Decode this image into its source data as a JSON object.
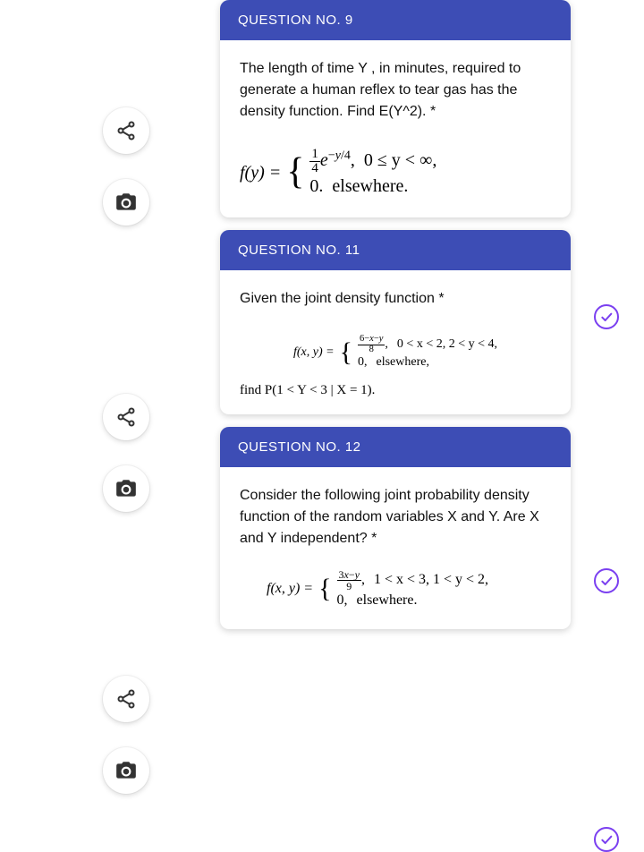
{
  "side_icons": {
    "share": "share-icon",
    "camera": "camera-icon"
  },
  "questions": [
    {
      "header": "QUESTION NO. 9",
      "body": "The length of time Y , in minutes, required to generate a human reflex to tear gas has the density function. Find E(Y^2). *",
      "formula": {
        "lhs": "f(y) =",
        "cases": [
          {
            "expr_html": "<span class='frac'><span class='num'>1</span><span class='den'>4</span></span><i>e</i><sup>−<i>y</i>/4</sup>,",
            "cond": "0 ≤ y < ∞,"
          },
          {
            "expr": "0.",
            "cond": "elsewhere."
          }
        ]
      }
    },
    {
      "header": "QUESTION NO. 11",
      "body": "Given the joint density function *",
      "formula": {
        "lhs": "f(x, y) =",
        "cases": [
          {
            "expr_html": "<span class='frac'><span class='num'>6−<i>x</i>−<i>y</i></span><span class='den'>8</span></span>,",
            "cond": "0 < x < 2,  2 < y < 4,"
          },
          {
            "expr": "0,",
            "cond": "elsewhere,"
          }
        ]
      },
      "find": "find P(1 < Y < 3 | X = 1)."
    },
    {
      "header": "QUESTION NO. 12",
      "body": "Consider the following joint probability density function of the random variables X and Y. Are X and Y independent? *",
      "formula": {
        "lhs": "f(x, y) =",
        "cases": [
          {
            "expr_html": "<span class='frac'><span class='num'>3<i>x</i>−<i>y</i></span><span class='den'>9</span></span>,",
            "cond": "1 < x < 3,  1 < y < 2,"
          },
          {
            "expr": "0,",
            "cond": "elsewhere."
          }
        ]
      }
    }
  ],
  "colors": {
    "header_bg": "#3d4db5",
    "check_border": "#7a3ff0"
  }
}
